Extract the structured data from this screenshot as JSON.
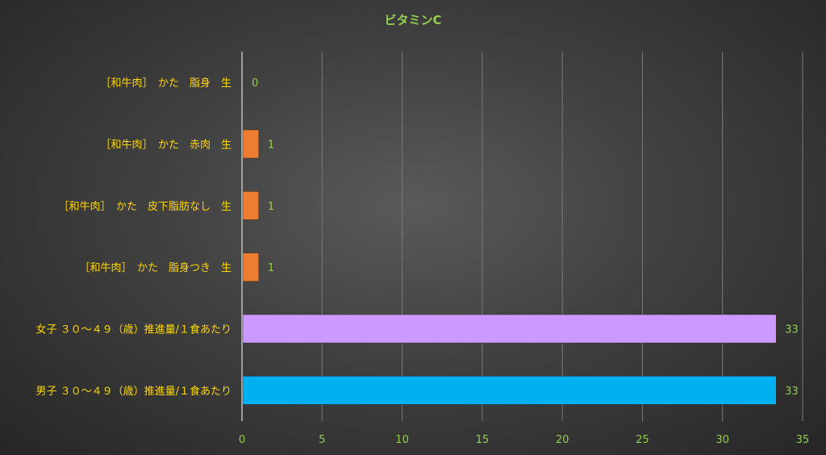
{
  "chart_data": {
    "type": "bar",
    "orientation": "horizontal",
    "title": "ビタミンC",
    "categories": [
      "［和牛肉］　かた　脂身　生",
      "［和牛肉］　かた　赤肉　生",
      "［和牛肉］　かた　皮下脂肪なし　生",
      "［和牛肉］　かた　脂身つき　生",
      "女子 ３０～４９（歳）推進量/１食あたり",
      "男子 ３０～４９（歳）推進量/１食あたり"
    ],
    "values": [
      0,
      1,
      1,
      1,
      33.3,
      33.3
    ],
    "data_labels": [
      "0",
      "1",
      "1",
      "1",
      "33",
      "33"
    ],
    "bar_colors": [
      "#ed7d31",
      "#ed7d31",
      "#ed7d31",
      "#ed7d31",
      "#cc99ff",
      "#00b0f0"
    ],
    "xlim": [
      0,
      35
    ],
    "xticks": [
      "0",
      "5",
      "10",
      "15",
      "20",
      "25",
      "30",
      "35"
    ],
    "grid": true,
    "legend": "none"
  }
}
